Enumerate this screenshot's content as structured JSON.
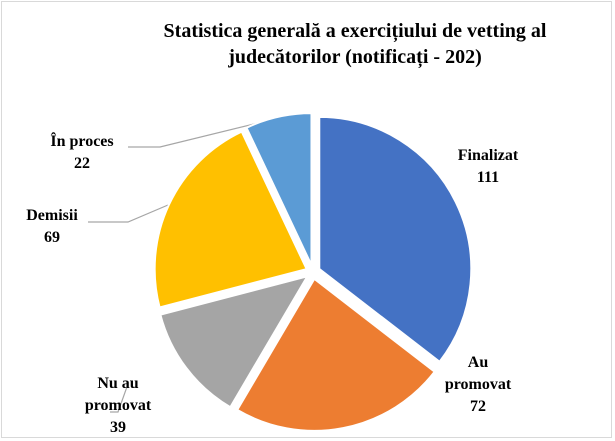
{
  "chart_data": {
    "type": "pie",
    "title": "Statistica generală a exercițiului de vetting al judecătorilor (notificați  - 202)",
    "categories": [
      "Finalizat",
      "Au promovat",
      "Nu au promovat",
      "Demisii",
      "În proces"
    ],
    "values": [
      111,
      72,
      39,
      69,
      22
    ],
    "colors": [
      "#4472c4",
      "#ed7d31",
      "#a5a5a5",
      "#ffc000",
      "#5b9bd5"
    ]
  }
}
